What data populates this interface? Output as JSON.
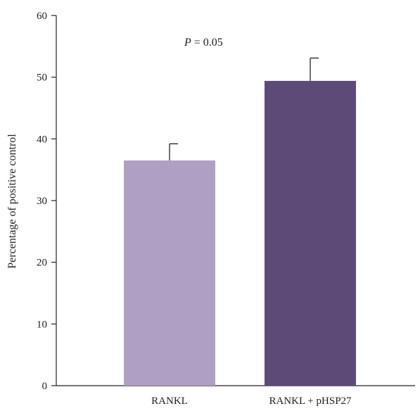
{
  "chart_data": {
    "type": "bar",
    "categories": [
      "RANKL",
      "RANKL + pHSP27"
    ],
    "values": [
      36.5,
      49.4
    ],
    "error_upper": [
      39.2,
      53.1
    ],
    "colors": [
      "#b09fc5",
      "#5d4a77"
    ],
    "ylabel": "Percentage of positive control",
    "xlabel": "",
    "ylim": [
      0,
      60
    ],
    "yticks": [
      0,
      10,
      20,
      30,
      40,
      50,
      60
    ],
    "annotation": {
      "italic": "P",
      "rest": " = 0.05"
    },
    "grid": false
  }
}
